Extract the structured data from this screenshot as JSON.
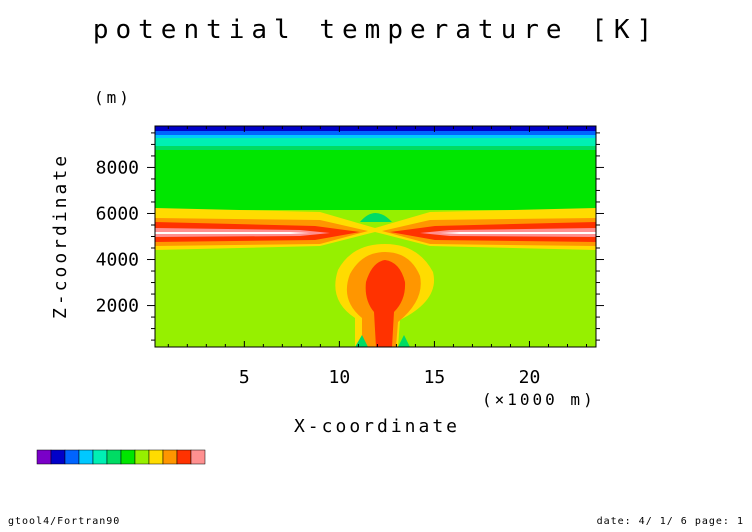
{
  "chart_data": {
    "type": "heatmap",
    "title": "potential temperature [K]",
    "xlabel": "X-coordinate",
    "x_unit": "(×1000 m)",
    "ylabel": "Z-coordinate",
    "y_unit": "(m)",
    "xlim": [
      0.3,
      23.5
    ],
    "ylim": [
      200,
      9800
    ],
    "x_ticks": [
      5,
      10,
      15,
      20
    ],
    "y_ticks": [
      2000,
      4000,
      6000,
      8000
    ],
    "grid": false,
    "colorbar": [
      "#7a00c8",
      "#0000c8",
      "#0064ff",
      "#00c8ff",
      "#00f0b4",
      "#00dc64",
      "#00e600",
      "#96f000",
      "#ffdc00",
      "#ff9600",
      "#ff3200",
      "#ff9090"
    ]
  },
  "footer": {
    "left": "gtool4/Fortran90",
    "right": "date: 4/ 1/ 6 page: 1"
  }
}
